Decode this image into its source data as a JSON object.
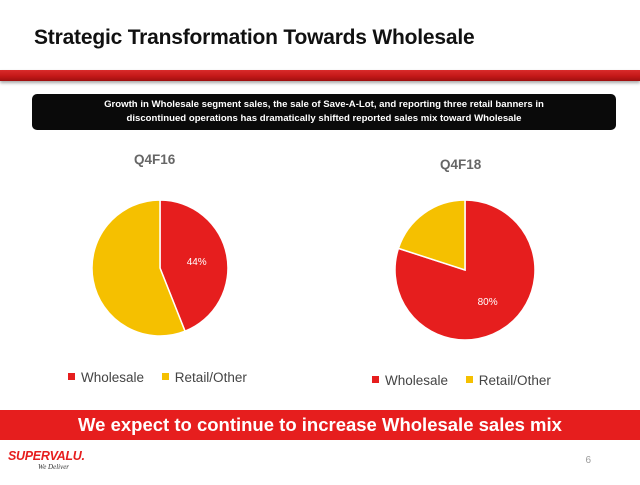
{
  "slide": {
    "title": "Strategic Transformation Towards Wholesale",
    "banner_lines": [
      "Growth in Wholesale segment sales, the sale of Save-A-Lot, and reporting three retail banners in",
      "discontinued operations has dramatically shifted reported sales mix toward Wholesale"
    ],
    "bottom_message": "We expect to continue to increase Wholesale sales mix",
    "page_number": "6",
    "logo": {
      "wordmark": "SUPERVALU.",
      "tagline": "We Deliver"
    },
    "colors": {
      "accent_red": "#e61e1e",
      "wholesale": "#e61e1e",
      "retail_other": "#f5c000",
      "banner_bg": "#0a0a0a"
    }
  },
  "chart_data": [
    {
      "type": "pie",
      "title": "Q4F16",
      "categories": [
        "Wholesale",
        "Retail/Other"
      ],
      "values": [
        44,
        56
      ],
      "data_labels": [
        "44%",
        ""
      ],
      "colors": [
        "#e61e1e",
        "#f5c000"
      ],
      "legend_placement": "bottom"
    },
    {
      "type": "pie",
      "title": "Q4F18",
      "categories": [
        "Wholesale",
        "Retail/Other"
      ],
      "values": [
        80,
        20
      ],
      "data_labels": [
        "80%",
        ""
      ],
      "colors": [
        "#e61e1e",
        "#f5c000"
      ],
      "legend_placement": "bottom"
    }
  ]
}
